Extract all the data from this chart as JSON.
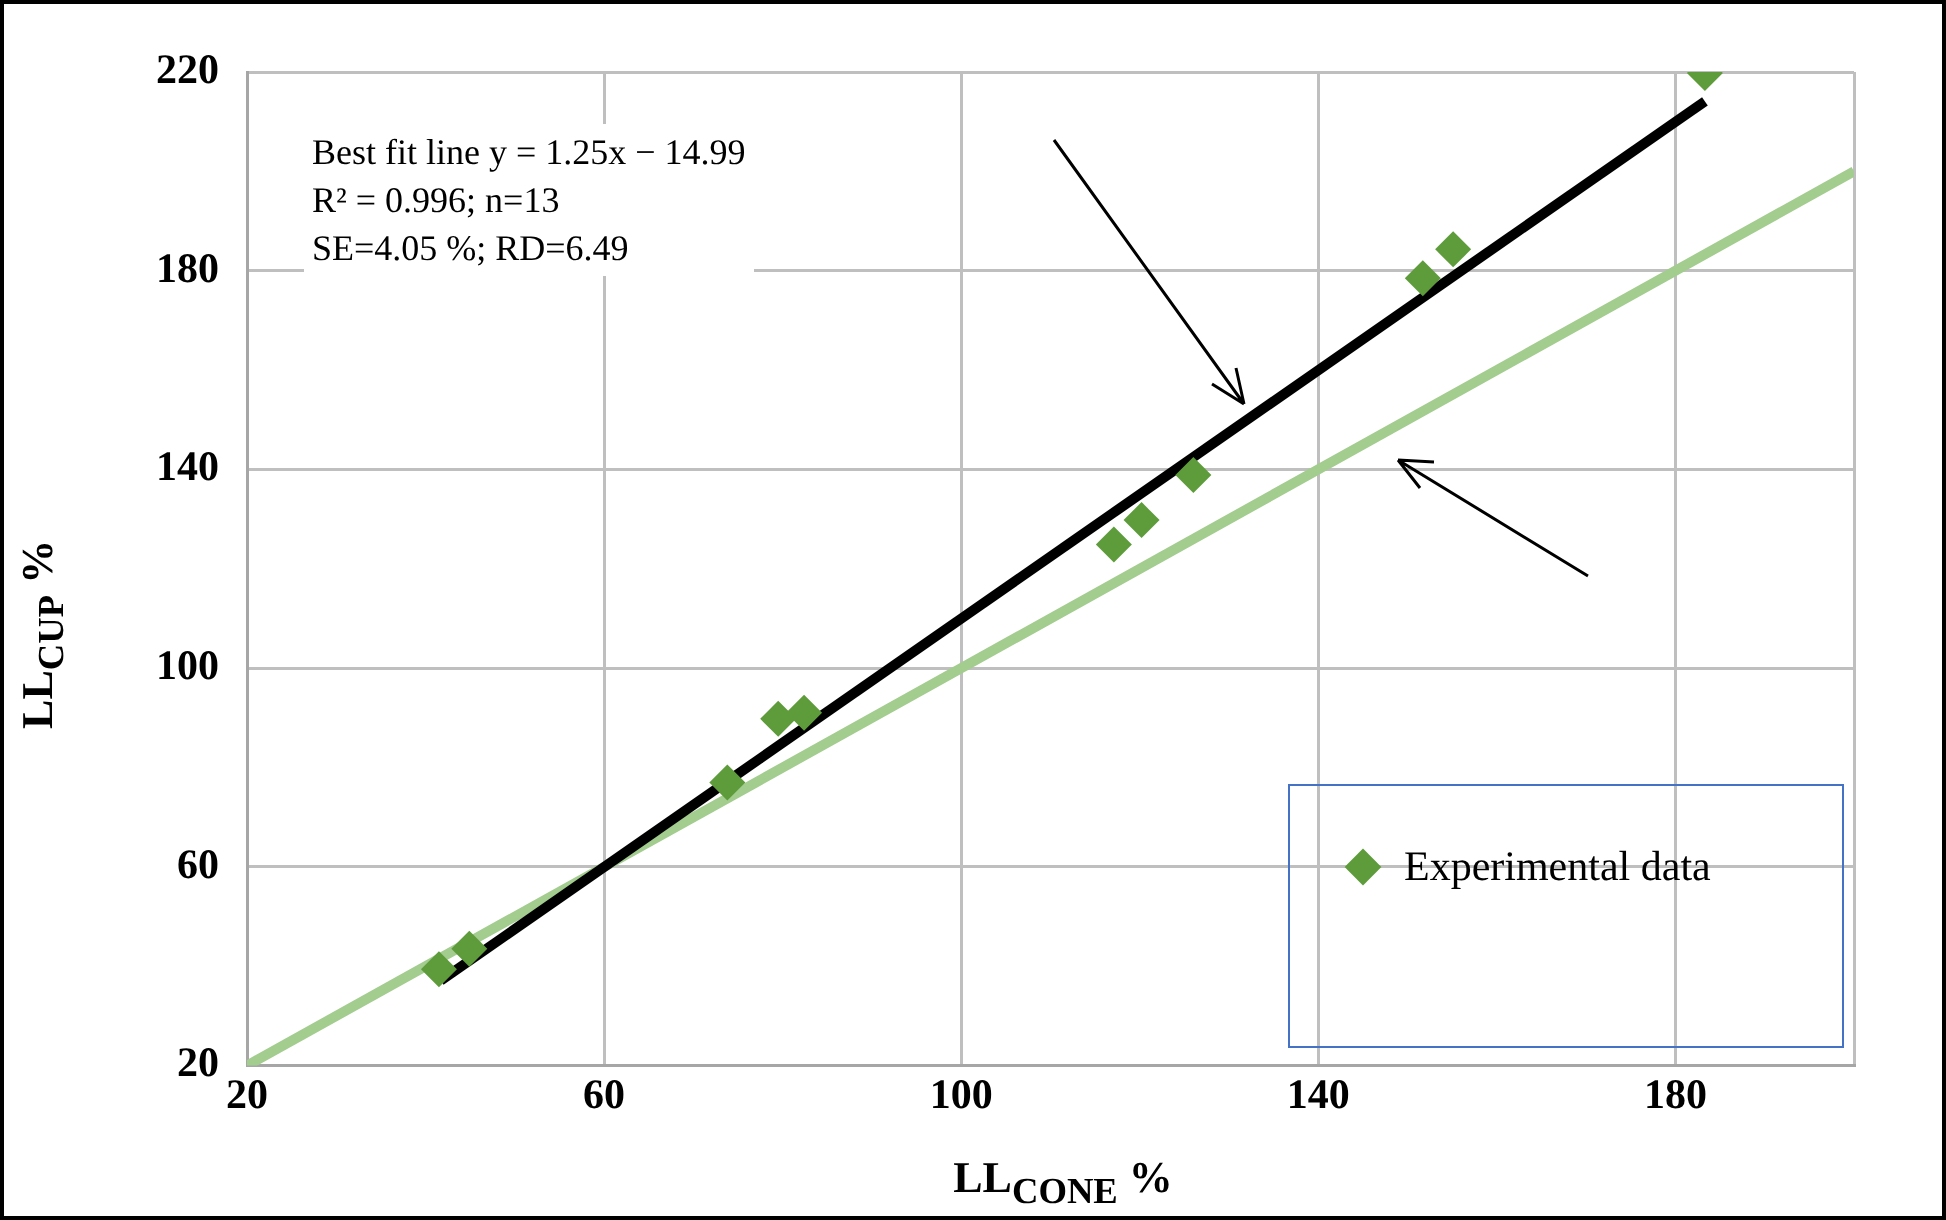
{
  "chart_data": {
    "type": "scatter",
    "xlabel": "LL$_{CONE}$ %",
    "ylabel": "LL$_{CUP}$ %",
    "annotations": [
      "Best fit line y = 1.25x − 14.99",
      "R² = 0.996; n=13",
      "SE=4.05 %; RD=6.49"
    ],
    "series": [
      {
        "name": "Experimental data",
        "marker": "diamond",
        "color": "#5e9c3b",
        "x": [
          41.5,
          44.9,
          73.8,
          79.5,
          82.4,
          117.1,
          120.2,
          126.0,
          151.7,
          155.1,
          183.3
        ],
        "values": [
          39.4,
          43.5,
          77.0,
          89.8,
          91.0,
          124.9,
          129.8,
          138.9,
          178.5,
          184.3,
          219.8
        ]
      },
      {
        "type": "line",
        "color": "#000000",
        "x": [
          41.7,
          183.3
        ],
        "values": [
          37.1,
          214.1
        ]
      },
      {
        "type": "line",
        "color": "#a3cc8f",
        "x": [
          20,
          200
        ],
        "values": [
          20,
          200
        ]
      }
    ],
    "xlim": [
      20,
      200
    ],
    "xticks": [
      20,
      60,
      100,
      140,
      180,
      {
        "value": 200,
        "label": null
      }
    ],
    "ylim": [
      20,
      220
    ],
    "yticks": [
      20,
      60,
      100,
      140,
      180,
      220
    ],
    "grid": true,
    "legend": "bottom right"
  }
}
